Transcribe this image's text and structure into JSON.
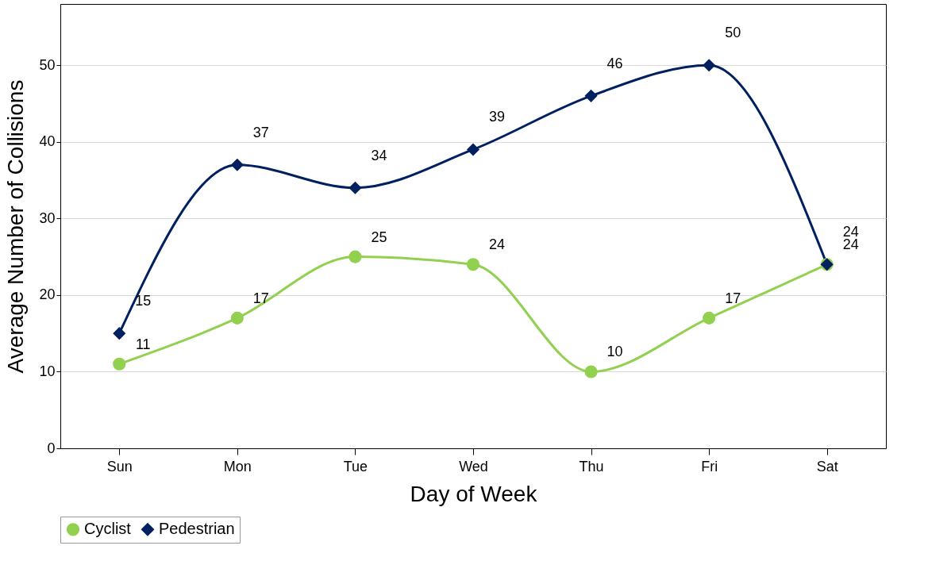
{
  "chart_data": {
    "type": "line",
    "xlabel": "Day of Week",
    "ylabel": "Average Number of Collisions",
    "categories": [
      "Sun",
      "Mon",
      "Tue",
      "Wed",
      "Thu",
      "Fri",
      "Sat"
    ],
    "series": [
      {
        "name": "Cyclist",
        "color": "#92d050",
        "marker": "circle",
        "values": [
          11,
          17,
          25,
          24,
          10,
          17,
          24
        ]
      },
      {
        "name": "Pedestrian",
        "color": "#002060",
        "marker": "diamond",
        "values": [
          15,
          37,
          34,
          39,
          46,
          50,
          24
        ]
      }
    ],
    "ylim": [
      0,
      58
    ],
    "yticks": [
      0,
      10,
      20,
      30,
      40,
      50
    ],
    "grid": "y",
    "legend": "bottom",
    "data_labels": true
  }
}
